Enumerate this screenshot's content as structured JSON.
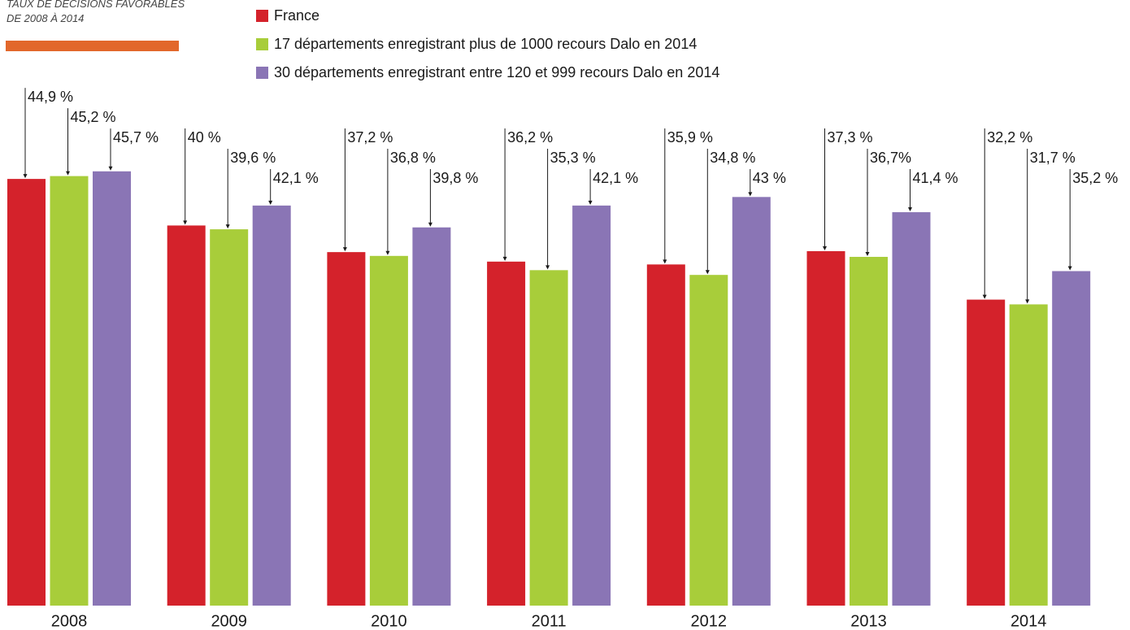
{
  "chart_data": {
    "type": "bar",
    "title": "TAUX DE DÉCISIONS FAVORABLES DE 2008 À 2014",
    "categories": [
      "2008",
      "2009",
      "2010",
      "2011",
      "2012",
      "2013",
      "2014"
    ],
    "series": [
      {
        "name": "France",
        "color": "#d4222b",
        "values": [
          44.9,
          40,
          37.2,
          36.2,
          35.9,
          37.3,
          32.2
        ],
        "value_labels": [
          "44,9 %",
          "40 %",
          "37,2 %",
          "36,2 %",
          "35,9 %",
          "37,3 %",
          "32,2 %"
        ]
      },
      {
        "name": "17 départements enregistrant plus de 1000 recours Dalo en 2014",
        "color": "#a8cd3a",
        "values": [
          45.2,
          39.6,
          36.8,
          35.3,
          34.8,
          36.7,
          31.7
        ],
        "value_labels": [
          "45,2 %",
          "39,6 %",
          "36,8 %",
          "35,3 %",
          "34,8 %",
          "36,7%",
          "31,7 %"
        ]
      },
      {
        "name": "30 départements enregistrant entre 120 et 999 recours Dalo en 2014",
        "color": "#8a75b5",
        "values": [
          45.7,
          42.1,
          39.8,
          42.1,
          43,
          41.4,
          35.2
        ],
        "value_labels": [
          "45,7 %",
          "42,1 %",
          "39,8 %",
          "42,1 %",
          "43 %",
          "41,4 %",
          "35,2 %"
        ]
      }
    ]
  }
}
